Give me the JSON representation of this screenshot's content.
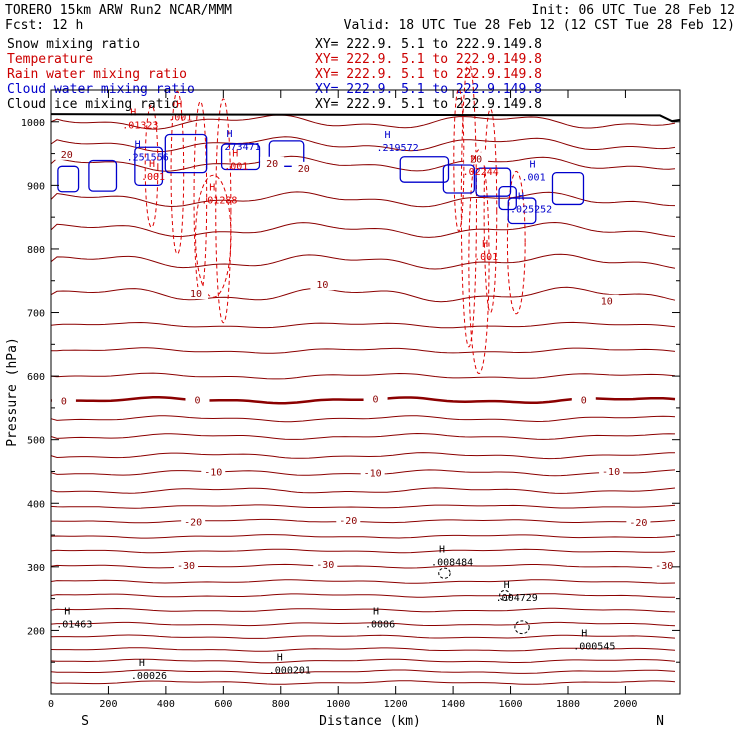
{
  "header": {
    "model_line": "TORERO  15km ARW   Run2    NCAR/MMM",
    "forecast_line": "Fcst:   12 h",
    "init": "Init: 06 UTC Tue 28 Feb 12",
    "valid": "Valid: 18 UTC Tue 28 Feb 12 (12 CST Tue 28 Feb 12)"
  },
  "legend": [
    {
      "name": "Snow mixing ratio",
      "xy": "XY= 222.9.  5.1 to 222.9.149.8",
      "color": "#000000"
    },
    {
      "name": "Temperature",
      "xy": "XY= 222.9.  5.1 to 222.9.149.8",
      "color": "#cc0000"
    },
    {
      "name": "Rain water mixing ratio",
      "xy": "XY= 222.9.  5.1 to 222.9.149.8",
      "color": "#cc0000"
    },
    {
      "name": "Cloud water mixing ratio",
      "xy": "XY= 222.9.  5.1 to 222.9.149.8",
      "color": "#0000cc"
    },
    {
      "name": "Cloud ice mixing ratio",
      "xy": "XY= 222.9.  5.1 to 222.9.149.8",
      "color": "#000000"
    }
  ],
  "chart_data": {
    "type": "cross-section",
    "xlabel": "Distance (km)",
    "ylabel": "Pressure (hPa)",
    "xlim": [
      0,
      2190
    ],
    "ylim": [
      1050,
      100
    ],
    "x_ticks": [
      0,
      200,
      400,
      600,
      800,
      1000,
      1200,
      1400,
      1600,
      1800,
      2000
    ],
    "y_ticks": [
      200,
      300,
      400,
      500,
      600,
      700,
      800,
      900,
      1000
    ],
    "left_end_label": "S",
    "right_end_label": "N",
    "isotherm_labels": [
      {
        "text": "-30",
        "x": 470,
        "p": 301
      },
      {
        "text": "-30",
        "x": 955,
        "p": 303
      },
      {
        "text": "-30",
        "x": 2135,
        "p": 301
      },
      {
        "text": "-20",
        "x": 495,
        "p": 370
      },
      {
        "text": "-20",
        "x": 1035,
        "p": 372
      },
      {
        "text": "-20",
        "x": 2045,
        "p": 369
      },
      {
        "text": "-10",
        "x": 565,
        "p": 448
      },
      {
        "text": "-10",
        "x": 1120,
        "p": 447
      },
      {
        "text": "-10",
        "x": 1950,
        "p": 449
      },
      {
        "text": "0",
        "x": 45,
        "p": 560
      },
      {
        "text": "0",
        "x": 510,
        "p": 562
      },
      {
        "text": "0",
        "x": 1130,
        "p": 563
      },
      {
        "text": "0",
        "x": 1855,
        "p": 562
      },
      {
        "text": "10",
        "x": 505,
        "p": 729
      },
      {
        "text": "10",
        "x": 945,
        "p": 743
      },
      {
        "text": "10",
        "x": 1935,
        "p": 717
      },
      {
        "text": "20",
        "x": 55,
        "p": 948
      },
      {
        "text": "20",
        "x": 770,
        "p": 934
      },
      {
        "text": "20",
        "x": 880,
        "p": 926
      },
      {
        "text": "20",
        "x": 1480,
        "p": 941
      }
    ],
    "snow_maxima": [
      {
        "text": ".000201",
        "x": 800,
        "p": 137
      },
      {
        "text": ".00026",
        "x": 320,
        "p": 128
      },
      {
        "text": ".01463",
        "x": 60,
        "p": 209
      },
      {
        "text": ".0006",
        "x": 1135,
        "p": 209
      },
      {
        "text": ".000545",
        "x": 1860,
        "p": 175
      },
      {
        "text": ".004729",
        "x": 1590,
        "p": 251
      },
      {
        "text": ".008484",
        "x": 1365,
        "p": 307
      }
    ],
    "rain_maxima": [
      {
        "text": ".01288",
        "x": 565,
        "p": 876
      },
      {
        "text": ".01323",
        "x": 290,
        "p": 994
      },
      {
        "text": ".001",
        "x": 355,
        "p": 913
      },
      {
        "text": ".001",
        "x": 645,
        "p": 930
      },
      {
        "text": ".001",
        "x": 450,
        "p": 1007
      },
      {
        "text": ".001",
        "x": 1515,
        "p": 787
      },
      {
        "text": ".02244",
        "x": 1475,
        "p": 921
      }
    ],
    "cloud_maxima": [
      {
        "text": ".251556",
        "x": 305,
        "p": 944
      },
      {
        "text": ".273471",
        "x": 625,
        "p": 960
      },
      {
        "text": ".219572",
        "x": 1175,
        "p": 959
      },
      {
        "text": ".025252",
        "x": 1640,
        "p": 862
      },
      {
        "text": ".001",
        "x": 1680,
        "p": 912
      }
    ]
  }
}
